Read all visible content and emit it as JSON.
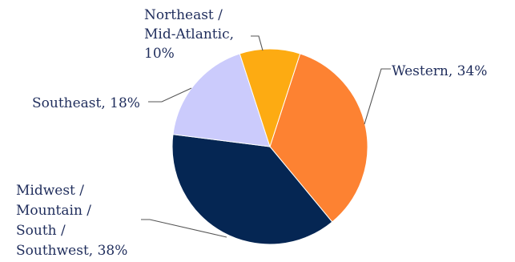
{
  "chart_data": {
    "type": "pie",
    "slices": [
      {
        "label": "Western",
        "value": 34,
        "pct_text": "34%",
        "color": "#fd8232",
        "label_lines": [
          "Western, 34%"
        ]
      },
      {
        "label": "Midwest / Mountain / South / Southwest",
        "value": 38,
        "pct_text": "38%",
        "color": "#052653",
        "label_lines": [
          "Midwest /",
          "Mountain /",
          "South /",
          "Southwest, 38%"
        ]
      },
      {
        "label": "Southeast",
        "value": 18,
        "pct_text": "18%",
        "color": "#cbcbfc",
        "label_lines": [
          "Southeast, 18%"
        ]
      },
      {
        "label": "Northeast / Mid-Atlantic",
        "value": 10,
        "pct_text": "10%",
        "color": "#fdab12",
        "label_lines": [
          "Northeast /",
          "Mid-Atlantic,",
          "10%"
        ]
      }
    ],
    "start_angle_deg": 18,
    "direction": "clockwise"
  }
}
